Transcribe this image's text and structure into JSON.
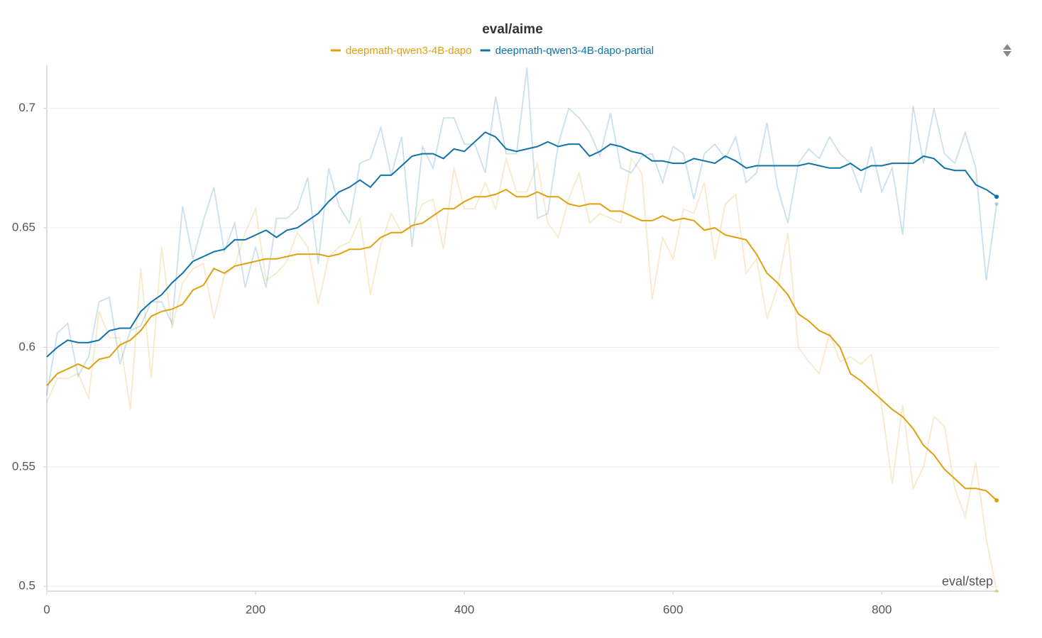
{
  "chart_data": {
    "type": "line",
    "title": "eval/aime",
    "x_label": "eval/step",
    "x": [
      0,
      10,
      20,
      30,
      40,
      50,
      60,
      70,
      80,
      90,
      100,
      110,
      120,
      130,
      140,
      150,
      160,
      170,
      180,
      190,
      200,
      210,
      220,
      230,
      240,
      250,
      260,
      270,
      280,
      290,
      300,
      310,
      320,
      330,
      340,
      350,
      360,
      370,
      380,
      390,
      400,
      410,
      420,
      430,
      440,
      450,
      460,
      470,
      480,
      490,
      500,
      510,
      520,
      530,
      540,
      550,
      560,
      570,
      580,
      590,
      600,
      610,
      620,
      630,
      640,
      650,
      660,
      670,
      680,
      690,
      700,
      710,
      720,
      730,
      740,
      750,
      760,
      770,
      780,
      790,
      800,
      810,
      820,
      830,
      840,
      850,
      860,
      870,
      880,
      890,
      900,
      910
    ],
    "series": [
      {
        "name": "deepmath-qwen3-4B-dapo",
        "color": "#e0a00e",
        "values": [
          0.584,
          0.589,
          0.591,
          0.593,
          0.591,
          0.595,
          0.596,
          0.601,
          0.603,
          0.607,
          0.613,
          0.615,
          0.616,
          0.618,
          0.624,
          0.626,
          0.633,
          0.631,
          0.634,
          0.635,
          0.636,
          0.637,
          0.637,
          0.638,
          0.639,
          0.639,
          0.639,
          0.638,
          0.639,
          0.641,
          0.641,
          0.642,
          0.646,
          0.648,
          0.648,
          0.651,
          0.652,
          0.655,
          0.658,
          0.658,
          0.661,
          0.663,
          0.663,
          0.664,
          0.666,
          0.663,
          0.663,
          0.665,
          0.663,
          0.663,
          0.66,
          0.659,
          0.66,
          0.66,
          0.657,
          0.657,
          0.655,
          0.653,
          0.653,
          0.655,
          0.653,
          0.654,
          0.653,
          0.649,
          0.65,
          0.647,
          0.646,
          0.645,
          0.639,
          0.631,
          0.627,
          0.622,
          0.614,
          0.611,
          0.607,
          0.605,
          0.6,
          0.589,
          0.586,
          0.582,
          0.578,
          0.574,
          0.571,
          0.566,
          0.559,
          0.555,
          0.549,
          0.545,
          0.541,
          0.541,
          0.54,
          0.536
        ],
        "raw": [
          0.577,
          0.587,
          0.587,
          0.589,
          0.579,
          0.615,
          0.604,
          0.604,
          0.574,
          0.633,
          0.587,
          0.642,
          0.608,
          0.627,
          0.633,
          0.635,
          0.612,
          0.63,
          0.634,
          0.648,
          0.658,
          0.628,
          0.631,
          0.636,
          0.648,
          0.642,
          0.618,
          0.638,
          0.642,
          0.644,
          0.654,
          0.622,
          0.643,
          0.656,
          0.648,
          0.65,
          0.66,
          0.662,
          0.641,
          0.675,
          0.658,
          0.658,
          0.669,
          0.658,
          0.679,
          0.665,
          0.665,
          0.677,
          0.652,
          0.646,
          0.662,
          0.673,
          0.652,
          0.656,
          0.654,
          0.652,
          0.679,
          0.673,
          0.62,
          0.646,
          0.637,
          0.658,
          0.656,
          0.669,
          0.637,
          0.66,
          0.664,
          0.631,
          0.637,
          0.612,
          0.625,
          0.648,
          0.6,
          0.594,
          0.589,
          0.606,
          0.594,
          0.596,
          0.593,
          0.597,
          0.575,
          0.543,
          0.576,
          0.541,
          0.55,
          0.571,
          0.567,
          0.541,
          0.529,
          0.552,
          0.52,
          0.498
        ]
      },
      {
        "name": "deepmath-qwen3-4B-dapo-partial",
        "color": "#0f72a8",
        "values": [
          0.596,
          0.6,
          0.603,
          0.602,
          0.602,
          0.603,
          0.607,
          0.608,
          0.608,
          0.615,
          0.619,
          0.622,
          0.627,
          0.631,
          0.636,
          0.638,
          0.64,
          0.641,
          0.645,
          0.645,
          0.647,
          0.649,
          0.646,
          0.649,
          0.65,
          0.653,
          0.656,
          0.661,
          0.665,
          0.667,
          0.67,
          0.667,
          0.672,
          0.672,
          0.676,
          0.68,
          0.681,
          0.681,
          0.679,
          0.683,
          0.682,
          0.686,
          0.69,
          0.688,
          0.683,
          0.682,
          0.683,
          0.684,
          0.686,
          0.684,
          0.685,
          0.685,
          0.68,
          0.682,
          0.685,
          0.684,
          0.682,
          0.681,
          0.678,
          0.678,
          0.677,
          0.677,
          0.679,
          0.678,
          0.677,
          0.68,
          0.678,
          0.675,
          0.676,
          0.676,
          0.676,
          0.676,
          0.676,
          0.677,
          0.676,
          0.675,
          0.675,
          0.677,
          0.674,
          0.676,
          0.676,
          0.677,
          0.677,
          0.677,
          0.68,
          0.679,
          0.675,
          0.674,
          0.674,
          0.668,
          0.666,
          0.663
        ],
        "raw": [
          0.58,
          0.606,
          0.61,
          0.588,
          0.596,
          0.619,
          0.621,
          0.593,
          0.607,
          0.609,
          0.619,
          0.619,
          0.61,
          0.659,
          0.637,
          0.653,
          0.667,
          0.64,
          0.652,
          0.625,
          0.642,
          0.625,
          0.654,
          0.654,
          0.658,
          0.671,
          0.635,
          0.675,
          0.659,
          0.652,
          0.677,
          0.679,
          0.692,
          0.672,
          0.688,
          0.642,
          0.684,
          0.675,
          0.696,
          0.696,
          0.685,
          0.685,
          0.673,
          0.705,
          0.681,
          0.681,
          0.717,
          0.654,
          0.656,
          0.685,
          0.7,
          0.696,
          0.69,
          0.68,
          0.698,
          0.675,
          0.673,
          0.68,
          0.681,
          0.669,
          0.684,
          0.681,
          0.662,
          0.681,
          0.685,
          0.679,
          0.688,
          0.669,
          0.673,
          0.694,
          0.667,
          0.652,
          0.677,
          0.683,
          0.679,
          0.688,
          0.681,
          0.677,
          0.665,
          0.684,
          0.665,
          0.675,
          0.647,
          0.701,
          0.677,
          0.7,
          0.681,
          0.677,
          0.69,
          0.675,
          0.628,
          0.66
        ]
      }
    ],
    "xlim": [
      0,
      912
    ],
    "ylim": [
      0.498,
      0.718
    ],
    "xticks": [
      0,
      200,
      400,
      600,
      800
    ],
    "yticks": [
      0.5,
      0.55,
      0.6,
      0.65,
      0.7
    ],
    "grid": true,
    "legend": "top"
  }
}
